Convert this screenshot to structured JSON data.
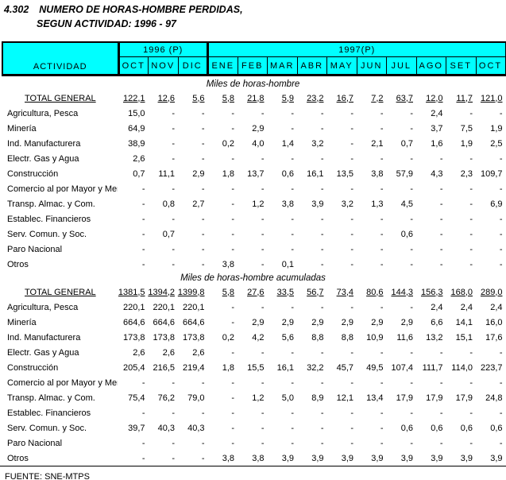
{
  "title": {
    "code": "4.302",
    "line1": "NUMERO DE HORAS-HOMBRE PERDIDAS,",
    "line2": "SEGUN ACTIVIDAD: 1996 - 97"
  },
  "header": {
    "activity_label": "ACTIVIDAD",
    "groups": [
      {
        "label": "1996 (P)",
        "months": [
          "OCT",
          "NOV",
          "DIC"
        ]
      },
      {
        "label": "1997(P)",
        "months": [
          "ENE",
          "FEB",
          "MAR",
          "ABR",
          "MAY",
          "JUN",
          "JUL",
          "AGO",
          "SET",
          "OCT"
        ]
      }
    ]
  },
  "sections": [
    {
      "caption": "Miles de horas-hombre",
      "rows": [
        {
          "label": "TOTAL GENERAL",
          "total": true,
          "values": [
            "122,1",
            "12,6",
            "5,6",
            "5,8",
            "21,8",
            "5,9",
            "23,2",
            "16,7",
            "7,2",
            "63,7",
            "12,0",
            "11,7",
            "121,0"
          ]
        },
        {
          "label": "Agricultura, Pesca",
          "total": false,
          "values": [
            "15,0",
            "-",
            "-",
            "-",
            "-",
            "-",
            "-",
            "-",
            "-",
            "-",
            "2,4",
            "-",
            "-"
          ]
        },
        {
          "label": "Minería",
          "total": false,
          "values": [
            "64,9",
            "-",
            "-",
            "-",
            "2,9",
            "-",
            "-",
            "-",
            "-",
            "-",
            "3,7",
            "7,5",
            "1,9"
          ]
        },
        {
          "label": "Ind. Manufacturera",
          "total": false,
          "values": [
            "38,9",
            "-",
            "-",
            "0,2",
            "4,0",
            "1,4",
            "3,2",
            "-",
            "2,1",
            "0,7",
            "1,6",
            "1,9",
            "2,5"
          ]
        },
        {
          "label": "Electr. Gas y Agua",
          "total": false,
          "values": [
            "2,6",
            "-",
            "-",
            "-",
            "-",
            "-",
            "-",
            "-",
            "-",
            "-",
            "-",
            "-",
            "-"
          ]
        },
        {
          "label": "Construcción",
          "total": false,
          "values": [
            "0,7",
            "11,1",
            "2,9",
            "1,8",
            "13,7",
            "0,6",
            "16,1",
            "13,5",
            "3,8",
            "57,9",
            "4,3",
            "2,3",
            "109,7"
          ]
        },
        {
          "label": "Comercio al por Mayor y Men.",
          "total": false,
          "values": [
            "-",
            "-",
            "-",
            "-",
            "-",
            "-",
            "-",
            "-",
            "-",
            "-",
            "-",
            "-",
            "-"
          ]
        },
        {
          "label": "Transp. Almac. y Com.",
          "total": false,
          "values": [
            "-",
            "0,8",
            "2,7",
            "-",
            "1,2",
            "3,8",
            "3,9",
            "3,2",
            "1,3",
            "4,5",
            "-",
            "-",
            "6,9"
          ]
        },
        {
          "label": "Establec. Financieros",
          "total": false,
          "values": [
            "-",
            "-",
            "-",
            "-",
            "-",
            "-",
            "-",
            "-",
            "-",
            "-",
            "-",
            "-",
            "-"
          ]
        },
        {
          "label": "Serv. Comun. y Soc.",
          "total": false,
          "values": [
            "-",
            "0,7",
            "-",
            "-",
            "-",
            "-",
            "-",
            "-",
            "-",
            "0,6",
            "-",
            "-",
            "-"
          ]
        },
        {
          "label": "Paro Nacional",
          "total": false,
          "values": [
            "-",
            "-",
            "-",
            "-",
            "-",
            "-",
            "-",
            "-",
            "-",
            "-",
            "-",
            "-",
            "-"
          ]
        },
        {
          "label": "Otros",
          "total": false,
          "values": [
            "-",
            "-",
            "-",
            "3,8",
            "-",
            "0,1",
            "-",
            "-",
            "-",
            "-",
            "-",
            "-",
            "-"
          ]
        }
      ]
    },
    {
      "caption": "Miles de horas-hombre acumuladas",
      "rows": [
        {
          "label": "TOTAL GENERAL",
          "total": true,
          "values": [
            "1381,5",
            "1394,2",
            "1399,8",
            "5,8",
            "27,6",
            "33,5",
            "56,7",
            "73,4",
            "80,6",
            "144,3",
            "156,3",
            "168,0",
            "289,0"
          ]
        },
        {
          "label": "Agricultura, Pesca",
          "total": false,
          "values": [
            "220,1",
            "220,1",
            "220,1",
            "-",
            "-",
            "-",
            "-",
            "-",
            "-",
            "-",
            "2,4",
            "2,4",
            "2,4"
          ]
        },
        {
          "label": "Minería",
          "total": false,
          "values": [
            "664,6",
            "664,6",
            "664,6",
            "-",
            "2,9",
            "2,9",
            "2,9",
            "2,9",
            "2,9",
            "2,9",
            "6,6",
            "14,1",
            "16,0"
          ]
        },
        {
          "label": "Ind. Manufacturera",
          "total": false,
          "values": [
            "173,8",
            "173,8",
            "173,8",
            "0,2",
            "4,2",
            "5,6",
            "8,8",
            "8,8",
            "10,9",
            "11,6",
            "13,2",
            "15,1",
            "17,6"
          ]
        },
        {
          "label": "Electr. Gas y Agua",
          "total": false,
          "values": [
            "2,6",
            "2,6",
            "2,6",
            "-",
            "-",
            "-",
            "-",
            "-",
            "-",
            "-",
            "-",
            "-",
            "-"
          ]
        },
        {
          "label": "Construcción",
          "total": false,
          "values": [
            "205,4",
            "216,5",
            "219,4",
            "1,8",
            "15,5",
            "16,1",
            "32,2",
            "45,7",
            "49,5",
            "107,4",
            "111,7",
            "114,0",
            "223,7"
          ]
        },
        {
          "label": "Comercio al por Mayor y Men.",
          "total": false,
          "values": [
            "-",
            "-",
            "-",
            "-",
            "-",
            "-",
            "-",
            "-",
            "-",
            "-",
            "-",
            "-",
            "-"
          ]
        },
        {
          "label": "Transp. Almac. y Com.",
          "total": false,
          "values": [
            "75,4",
            "76,2",
            "79,0",
            "-",
            "1,2",
            "5,0",
            "8,9",
            "12,1",
            "13,4",
            "17,9",
            "17,9",
            "17,9",
            "24,8"
          ]
        },
        {
          "label": "Establec. Financieros",
          "total": false,
          "values": [
            "-",
            "-",
            "-",
            "-",
            "-",
            "-",
            "-",
            "-",
            "-",
            "-",
            "-",
            "-",
            "-"
          ]
        },
        {
          "label": "Serv. Comun. y Soc.",
          "total": false,
          "values": [
            "39,7",
            "40,3",
            "40,3",
            "-",
            "-",
            "-",
            "-",
            "-",
            "-",
            "0,6",
            "0,6",
            "0,6",
            "0,6"
          ]
        },
        {
          "label": "Paro Nacional",
          "total": false,
          "values": [
            "-",
            "-",
            "-",
            "-",
            "-",
            "-",
            "-",
            "-",
            "-",
            "-",
            "-",
            "-",
            "-"
          ]
        },
        {
          "label": "Otros",
          "total": false,
          "values": [
            "-",
            "-",
            "-",
            "3,8",
            "3,8",
            "3,9",
            "3,9",
            "3,9",
            "3,9",
            "3,9",
            "3,9",
            "3,9",
            "3,9"
          ]
        }
      ]
    }
  ],
  "footer": {
    "source": "FUENTE: SNE-MTPS"
  },
  "colors": {
    "header_bg": "#00ffff",
    "text": "#000000"
  }
}
